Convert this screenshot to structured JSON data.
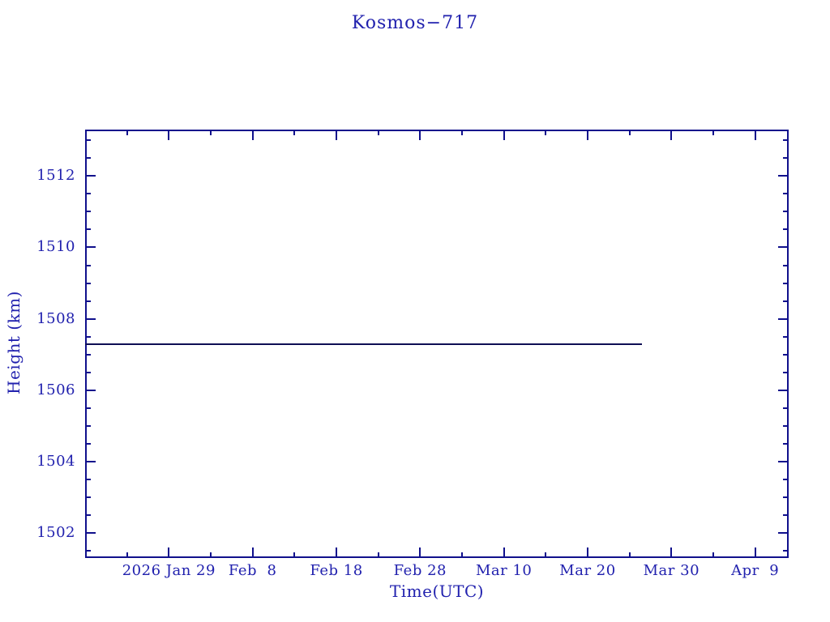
{
  "colors": {
    "text": "#2121ae",
    "axis": "#10108c",
    "line": "#0e0e54",
    "background": "#ffffff"
  },
  "chart_data": {
    "type": "line",
    "title": "Kosmos−717",
    "xlabel": "Time(UTC)",
    "ylabel": "Height (km)",
    "ylim": [
      1501.3,
      1513.3
    ],
    "y_major_ticks": [
      1502,
      1504,
      1506,
      1508,
      1510,
      1512
    ],
    "y_minor_step": 0.5,
    "xlim_days": [
      0,
      84
    ],
    "x_major_ticks": [
      {
        "day": 10,
        "label": "2026 Jan 29"
      },
      {
        "day": 20,
        "label": "Feb  8"
      },
      {
        "day": 30,
        "label": "Feb 18"
      },
      {
        "day": 40,
        "label": "Feb 28"
      },
      {
        "day": 50,
        "label": "Mar 10"
      },
      {
        "day": 60,
        "label": "Mar 20"
      },
      {
        "day": 70,
        "label": "Mar 30"
      },
      {
        "day": 80,
        "label": "Apr  9"
      }
    ],
    "x_minor_tick_days": [
      5,
      15,
      25,
      35,
      45,
      55,
      65,
      75
    ],
    "grid": false,
    "legend": false,
    "series": [
      {
        "name": "height",
        "points": [
          {
            "day": 0,
            "km": 1507.3
          },
          {
            "day": 66.5,
            "km": 1507.3
          }
        ]
      }
    ]
  }
}
